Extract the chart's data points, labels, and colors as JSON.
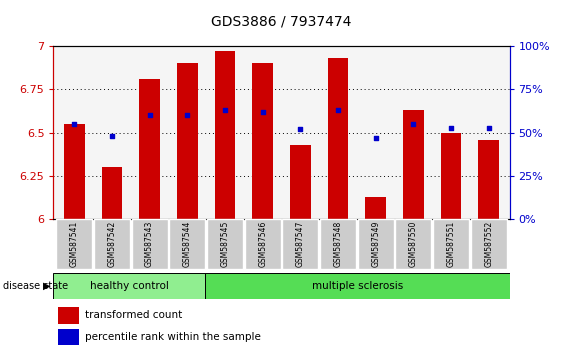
{
  "title": "GDS3886 / 7937474",
  "samples": [
    "GSM587541",
    "GSM587542",
    "GSM587543",
    "GSM587544",
    "GSM587545",
    "GSM587546",
    "GSM587547",
    "GSM587548",
    "GSM587549",
    "GSM587550",
    "GSM587551",
    "GSM587552"
  ],
  "transformed_count": [
    6.55,
    6.3,
    6.81,
    6.9,
    6.97,
    6.9,
    6.43,
    6.93,
    6.13,
    6.63,
    6.5,
    6.46
  ],
  "percentile_rank": [
    55,
    48,
    60,
    60,
    63,
    62,
    52,
    63,
    47,
    55,
    53,
    53
  ],
  "ylim_left": [
    6.0,
    7.0
  ],
  "ylim_right": [
    0,
    100
  ],
  "yticks_left": [
    6.0,
    6.25,
    6.5,
    6.75,
    7.0
  ],
  "ytick_labels_left": [
    "6",
    "6.25",
    "6.5",
    "6.75",
    "7"
  ],
  "yticks_right": [
    0,
    25,
    50,
    75,
    100
  ],
  "ytick_labels_right": [
    "0%",
    "25%",
    "50%",
    "75%",
    "100%"
  ],
  "bar_color": "#cc0000",
  "dot_color": "#0000cc",
  "bar_width": 0.55,
  "healthy_color": "#90ee90",
  "ms_color": "#55dd55",
  "disease_state_label": "disease state",
  "healthy_label": "healthy control",
  "ms_label": "multiple sclerosis",
  "legend_transformed": "transformed count",
  "legend_percentile": "percentile rank within the sample",
  "background_plot": "#f5f5f5",
  "background_xtick": "#cccccc",
  "num_healthy": 4,
  "num_samples": 12
}
